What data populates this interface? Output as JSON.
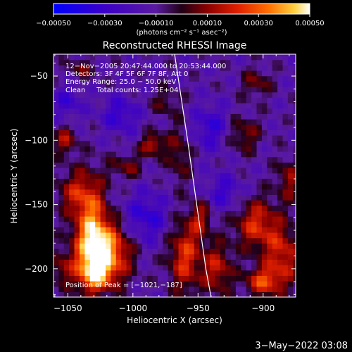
{
  "chart_data": {
    "type": "heatmap",
    "title": "Reconstructed RHESSI Image",
    "xlabel": "Heliocentric X (arcsec)",
    "ylabel": "Heliocentric Y (arcsec)",
    "xlim": [
      -1061,
      -875
    ],
    "ylim": [
      -222,
      -33
    ],
    "x_ticks": [
      -1050,
      -1000,
      -950,
      -900
    ],
    "x_tick_labels": [
      "−1050",
      "−1000",
      "−950",
      "−900"
    ],
    "y_ticks": [
      -50,
      -100,
      -150,
      -200
    ],
    "y_tick_labels": [
      "−50",
      "−100",
      "−150",
      "−200"
    ],
    "colorbar": {
      "min": -0.0005,
      "max": 0.0005,
      "ticks": [
        -0.0005,
        -0.0003,
        -0.0001,
        0.0001,
        0.0003,
        0.0005
      ],
      "tick_labels": [
        "−0.00050",
        "−0.00030",
        "−0.00010",
        "0.00010",
        "0.00030",
        "0.00050"
      ],
      "units": "(photons cm⁻² s⁻¹ asec⁻²)"
    },
    "annotations": [
      "12−Nov−2005 20:47:44.000 to 20:53:44.000",
      "Detectors: 3F 4F 5F 6F 7F 8F, Att 0",
      "Energy Range: 25.0 − 50.0 keV",
      "Clean     Total counts: 1.25E+04"
    ],
    "peak_label": "Position of Peak = [−1021,−187]",
    "peak": [
      -1021,
      -187
    ],
    "limb": [
      [
        -968,
        -33
      ],
      [
        -958,
        -100
      ],
      [
        -951,
        -150
      ],
      [
        -944,
        -200
      ],
      [
        -940,
        -222
      ]
    ],
    "blobs": [
      {
        "x": -1022,
        "y": -187,
        "sx": 14,
        "sy": 16,
        "a": 0.00052
      },
      {
        "x": -1032,
        "y": -165,
        "sx": 9,
        "sy": 25,
        "a": 0.00038
      },
      {
        "x": -1030,
        "y": -205,
        "sx": 10,
        "sy": 10,
        "a": 0.00032
      },
      {
        "x": -1045,
        "y": -140,
        "sx": 10,
        "sy": 12,
        "a": 0.00022
      },
      {
        "x": -1052,
        "y": -100,
        "sx": 6,
        "sy": 8,
        "a": 0.00024
      },
      {
        "x": -1005,
        "y": -120,
        "sx": 9,
        "sy": 7,
        "a": 0.00018
      },
      {
        "x": -985,
        "y": -103,
        "sx": 6,
        "sy": 6,
        "a": 0.0003
      },
      {
        "x": -965,
        "y": -110,
        "sx": 7,
        "sy": 16,
        "a": 0.00018
      },
      {
        "x": -975,
        "y": -70,
        "sx": 8,
        "sy": 8,
        "a": 0.00014
      },
      {
        "x": -960,
        "y": -190,
        "sx": 9,
        "sy": 20,
        "a": 0.00034
      },
      {
        "x": -948,
        "y": -160,
        "sx": 6,
        "sy": 10,
        "a": 0.00022
      },
      {
        "x": -935,
        "y": -200,
        "sx": 8,
        "sy": 14,
        "a": 0.00028
      },
      {
        "x": -905,
        "y": -165,
        "sx": 12,
        "sy": 14,
        "a": 0.00032
      },
      {
        "x": -885,
        "y": -190,
        "sx": 10,
        "sy": 16,
        "a": 0.0003
      },
      {
        "x": -900,
        "y": -210,
        "sx": 10,
        "sy": 8,
        "a": 0.00034
      },
      {
        "x": -915,
        "y": -95,
        "sx": 9,
        "sy": 10,
        "a": 0.0002
      },
      {
        "x": -905,
        "y": -55,
        "sx": 8,
        "sy": 8,
        "a": 0.00018
      },
      {
        "x": -880,
        "y": -130,
        "sx": 7,
        "sy": 12,
        "a": 0.00022
      },
      {
        "x": -1040,
        "y": -45,
        "sx": 8,
        "sy": 6,
        "a": 0.00016
      },
      {
        "x": -1055,
        "y": -200,
        "sx": 6,
        "sy": 10,
        "a": 0.00018
      },
      {
        "x": -1010,
        "y": -80,
        "sx": 10,
        "sy": 10,
        "a": -0.0002
      },
      {
        "x": -990,
        "y": -160,
        "sx": 12,
        "sy": 14,
        "a": -0.00022
      },
      {
        "x": -940,
        "y": -90,
        "sx": 10,
        "sy": 12,
        "a": -0.0002
      },
      {
        "x": -930,
        "y": -140,
        "sx": 10,
        "sy": 10,
        "a": -0.00018
      },
      {
        "x": -1050,
        "y": -70,
        "sx": 8,
        "sy": 10,
        "a": -0.00016
      }
    ],
    "background_level": -0.00012
  },
  "footer": {
    "date": "3−May−2022 03:08"
  }
}
